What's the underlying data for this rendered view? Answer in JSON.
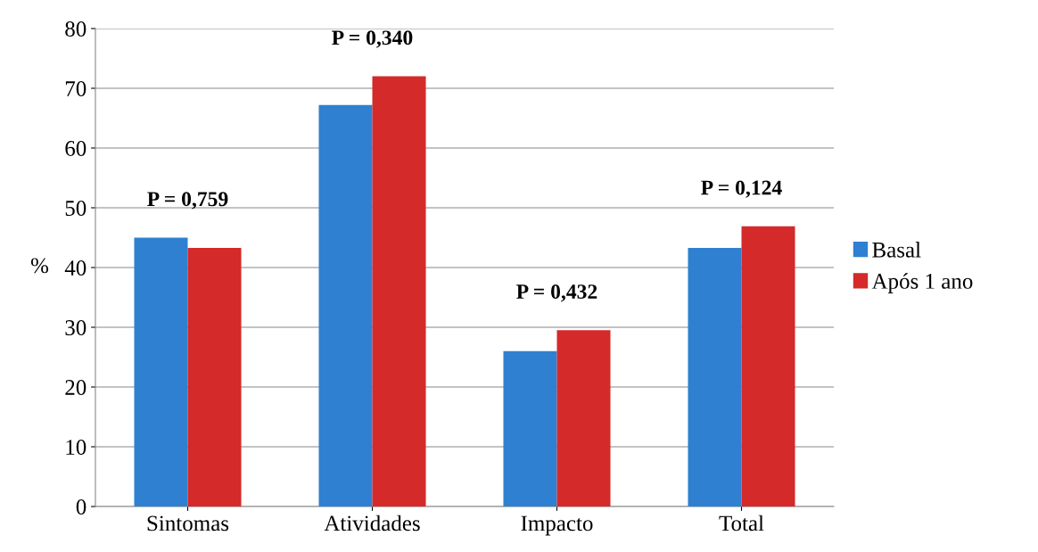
{
  "chart_data": {
    "type": "bar",
    "ylabel": "%",
    "categories": [
      "Sintomas",
      "Atividades",
      "Impacto",
      "Total"
    ],
    "series": [
      {
        "name": "Basal",
        "color": "#2f80d1",
        "values": [
          45.0,
          67.2,
          26.0,
          43.3
        ]
      },
      {
        "name": "Após 1 ano",
        "color": "#d42a2a",
        "values": [
          43.3,
          72.0,
          29.5,
          46.9
        ]
      }
    ],
    "ylim": [
      0,
      80
    ],
    "yticks": [
      0,
      10,
      20,
      30,
      40,
      50,
      60,
      70,
      80
    ],
    "grid": "y",
    "legend": "right",
    "annotations": [
      "P = 0,759",
      "P = 0,340",
      "P = 0,432",
      "P = 0,124"
    ]
  }
}
